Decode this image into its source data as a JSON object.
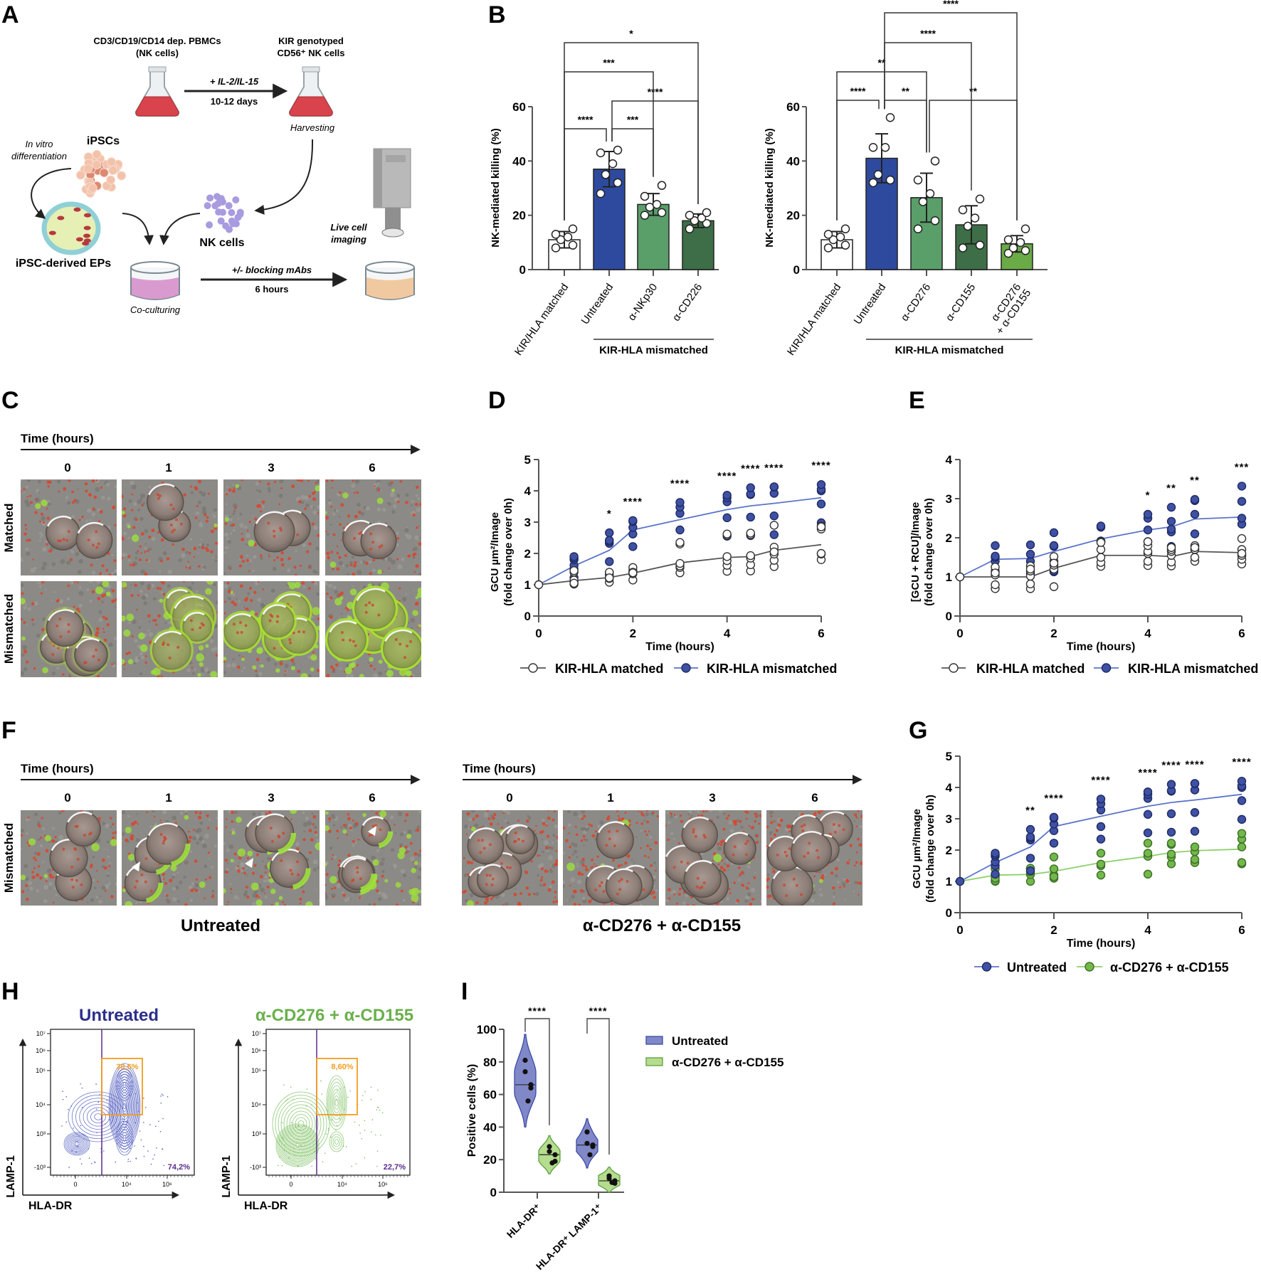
{
  "panel_letters": {
    "A": "A",
    "B": "B",
    "C": "C",
    "D": "D",
    "E": "E",
    "F": "F",
    "G": "G",
    "H": "H",
    "I": "I"
  },
  "panel_a": {
    "source_line1": "CD3/CD19/CD14 dep. PBMCs",
    "source_line2": "(NK cells)",
    "target_line1": "KIR genotyped",
    "target_line2": "CD56⁺ NK cells",
    "expansion_top": "+ IL-2/IL-15",
    "expansion_bottom": "10-12 days",
    "harvesting": "Harvesting",
    "in_vitro_line1": "In vitro",
    "in_vitro_line2": "differentiation",
    "ipscs": "iPSCs",
    "ipsc_eps": "iPSC-derived EPs",
    "nk_cells": "NK cells",
    "live_line1": "Live cell",
    "live_line2": "imaging",
    "coculture_top": "+/- blocking mAbs",
    "coculture_bottom": "6 hours",
    "coculturing": "Co-culturing",
    "colors": {
      "flask_medium": "#d9434b",
      "dish_coculture": "#d99bcf",
      "dish_imaging": "#f1c9a0",
      "nk_cell": "#a99be0"
    }
  },
  "panel_c": {
    "time_label": "Time (hours)",
    "timepoints": [
      "0",
      "1",
      "3",
      "6"
    ],
    "rows": [
      "Matched",
      "Mismatched"
    ]
  },
  "panel_f": {
    "time_label": "Time (hours)",
    "timepoints": [
      "0",
      "1",
      "3",
      "6"
    ],
    "row": "Mismatched",
    "groups": [
      "Untreated",
      "α-CD276 + α-CD155"
    ]
  },
  "panel_h": {
    "plots": [
      {
        "title": "Untreated",
        "color": "#2b2f8a",
        "contour_color": "#5560c0",
        "gate_upper": "30,6%",
        "gate_right": "74,2%"
      },
      {
        "title": "α-CD276 + α-CD155",
        "color": "#6ab04c",
        "contour_color": "#7cc060",
        "gate_upper": "8,60%",
        "gate_right": "22,7%"
      }
    ],
    "ylabel": "LAMP-1",
    "xlabel": "HLA-DR",
    "yticks": [
      "10⁷",
      "10⁶",
      "10⁵",
      "10⁴",
      "10³",
      "-10³"
    ],
    "xticks": [
      "0",
      "10⁴",
      "10⁶"
    ],
    "gate_color": "#f39c1f",
    "divider_color": "#5b2a8c"
  },
  "chart_data": [
    {
      "panel": "B",
      "type": "bar",
      "ylabel": "NK-mediated killing (%)",
      "ylim": [
        0,
        60
      ],
      "yticks": [
        0,
        20,
        40,
        60
      ],
      "categories": [
        "KIR/HLA matched",
        "Untreated",
        "α-NKp30",
        "α-CD226"
      ],
      "values": [
        11,
        37,
        24,
        18
      ],
      "sd": [
        3,
        6.5,
        4,
        2.5
      ],
      "points": [
        [
          8,
          9,
          11,
          12,
          13,
          15
        ],
        [
          28,
          32,
          35,
          39,
          43,
          44
        ],
        [
          20,
          21,
          23,
          24,
          27,
          31
        ],
        [
          15,
          17,
          18,
          19,
          20,
          21
        ]
      ],
      "colors": [
        "#ffffff",
        "#2e4a9e",
        "#5a9e6a",
        "#3d6e47"
      ],
      "group_label": "KIR-HLA mismatched",
      "comparisons": [
        {
          "pair": [
            0,
            1
          ],
          "label": "****"
        },
        {
          "pair": [
            1,
            2
          ],
          "label": "***"
        },
        {
          "pair": [
            1,
            3
          ],
          "label": "****"
        },
        {
          "pair": [
            0,
            2
          ],
          "label": "***"
        },
        {
          "pair": [
            0,
            3
          ],
          "label": "*"
        }
      ]
    },
    {
      "panel": "B",
      "type": "bar",
      "ylabel": "NK-mediated killing (%)",
      "ylim": [
        0,
        60
      ],
      "yticks": [
        0,
        20,
        40,
        60
      ],
      "categories": [
        "KIR/HLA matched",
        "Untreated",
        "α-CD276",
        "α-CD155",
        "α-CD276 + α-CD155"
      ],
      "values": [
        11,
        41,
        26.5,
        16.5,
        9.5
      ],
      "sd": [
        3,
        9,
        9,
        7,
        3
      ],
      "points": [
        [
          8,
          9,
          11,
          12,
          13,
          15
        ],
        [
          32,
          33,
          35,
          45,
          45,
          56
        ],
        [
          15,
          18,
          25,
          28,
          33,
          40
        ],
        [
          8,
          9,
          16,
          19,
          22,
          26
        ],
        [
          6,
          7,
          8,
          10,
          11,
          15
        ]
      ],
      "colors": [
        "#ffffff",
        "#2e4a9e",
        "#5a9e6a",
        "#3d6e47",
        "#6aaa47"
      ],
      "group_label": "KIR-HLA mismatched",
      "comparisons": [
        {
          "pair": [
            0,
            1
          ],
          "label": "****"
        },
        {
          "pair": [
            1,
            2
          ],
          "label": "**"
        },
        {
          "pair": [
            2,
            4
          ],
          "label": "**"
        },
        {
          "pair": [
            0,
            2
          ],
          "label": "**"
        },
        {
          "pair": [
            1,
            3
          ],
          "label": "****"
        },
        {
          "pair": [
            1,
            4
          ],
          "label": "****"
        }
      ]
    },
    {
      "panel": "D",
      "type": "scatter-line",
      "ylabel": [
        "GCU µm²/Image",
        "(fold change over 0h)"
      ],
      "xlabel": "Time (hours)",
      "xlim": [
        0,
        6
      ],
      "xticks": [
        0,
        2,
        4,
        6
      ],
      "ylim": [
        0,
        5
      ],
      "yticks": [
        0,
        1,
        2,
        3,
        4,
        5
      ],
      "x": [
        0,
        0.75,
        1.5,
        2,
        3,
        4,
        4.5,
        5,
        6
      ],
      "series": [
        {
          "name": "KIR-HLA matched",
          "line_color": "#555555",
          "marker_fill": "#ffffff",
          "marker_stroke": "#333333",
          "mean": [
            1,
            1.13,
            1.23,
            1.37,
            1.7,
            1.87,
            1.9,
            2.1,
            2.28
          ],
          "points": [
            [
              1
            ],
            [
              1.02,
              1.1,
              1.4,
              1.45,
              1.15,
              1.05
            ],
            [
              1.08,
              1.2,
              1.3,
              1.38,
              1.4,
              1.22
            ],
            [
              1.15,
              1.35,
              1.45,
              1.55,
              1.4,
              1.38
            ],
            [
              1.38,
              1.55,
              1.6,
              1.68,
              2.3,
              2.35
            ],
            [
              1.43,
              1.62,
              1.77,
              1.9,
              2.58,
              2.62
            ],
            [
              1.44,
              1.64,
              1.85,
              1.93,
              2.6,
              2.65
            ],
            [
              1.58,
              1.78,
              1.98,
              2.2,
              2.9,
              2.05
            ],
            [
              1.8,
              1.98,
              2.0,
              2.78,
              2.88,
              2.85
            ]
          ]
        },
        {
          "name": "KIR-HLA mismatched",
          "line_color": "#5b74c9",
          "marker_fill": "#3f51a3",
          "marker_stroke": "#1f2a66",
          "mean": [
            1,
            1.6,
            2.1,
            2.75,
            3.08,
            3.4,
            3.52,
            3.6,
            3.78
          ],
          "points": [
            [
              1
            ],
            [
              1.23,
              1.5,
              1.62,
              1.8,
              1.85,
              1.9
            ],
            [
              1.74,
              2.32,
              2.38,
              2.42,
              2.66
            ],
            [
              2.22,
              2.62,
              2.83,
              3.02,
              3.05
            ],
            [
              2.75,
              3.28,
              3.48,
              3.63
            ],
            [
              2.55,
              3.14,
              3.65,
              3.78,
              3.86
            ],
            [
              2.57,
              3.16,
              3.88,
              3.9,
              4.1
            ],
            [
              2.6,
              3.2,
              3.92,
              4.12,
              4.13
            ],
            [
              2.98,
              3.58,
              4.0,
              4.05,
              4.2
            ]
          ]
        }
      ],
      "significance": [
        {
          "x": 1.5,
          "label": "*"
        },
        {
          "x": 2,
          "label": "****"
        },
        {
          "x": 3,
          "label": "****"
        },
        {
          "x": 4,
          "label": "****"
        },
        {
          "x": 4.5,
          "label": "****"
        },
        {
          "x": 5,
          "label": "****"
        },
        {
          "x": 6,
          "label": "****"
        }
      ]
    },
    {
      "panel": "E",
      "type": "scatter-line",
      "ylabel": [
        "[GCU + RCU]/Image",
        "(fold change over 0h)"
      ],
      "xlabel": "Time (hours)",
      "xlim": [
        0,
        6
      ],
      "xticks": [
        0,
        2,
        4,
        6
      ],
      "ylim": [
        0,
        4
      ],
      "yticks": [
        0,
        1,
        2,
        3,
        4
      ],
      "x": [
        0,
        0.75,
        1.5,
        2,
        3,
        4,
        4.5,
        5,
        6
      ],
      "series": [
        {
          "name": "KIR-HLA matched",
          "line_color": "#555555",
          "marker_fill": "#ffffff",
          "marker_stroke": "#333333",
          "mean": [
            1,
            1.0,
            1.0,
            1.22,
            1.55,
            1.55,
            1.52,
            1.65,
            1.62
          ],
          "points": [
            [
              1
            ],
            [
              0.7,
              0.8,
              1.05,
              1.15,
              1.25,
              1.1
            ],
            [
              0.7,
              0.82,
              1.02,
              1.15,
              1.28,
              1.2
            ],
            [
              0.75,
              1.2,
              1.3,
              1.4,
              1.52,
              1.35
            ],
            [
              1.27,
              1.37,
              1.5,
              1.7,
              1.9,
              1.88
            ],
            [
              1.29,
              1.4,
              1.6,
              1.65,
              1.8,
              1.9
            ],
            [
              1.28,
              1.38,
              1.55,
              1.65,
              1.7,
              1.75
            ],
            [
              1.4,
              1.5,
              1.7,
              1.78,
              1.8,
              1.75
            ],
            [
              1.33,
              1.45,
              1.55,
              1.7,
              1.98,
              1.6
            ]
          ]
        },
        {
          "name": "KIR-HLA mismatched",
          "line_color": "#5b74c9",
          "marker_fill": "#3f51a3",
          "marker_stroke": "#1f2a66",
          "mean": [
            1,
            1.45,
            1.47,
            1.65,
            1.97,
            2.2,
            2.28,
            2.48,
            2.53
          ],
          "points": [
            [
              1
            ],
            [
              1.4,
              1.5,
              1.53,
              1.8
            ],
            [
              1.08,
              1.4,
              1.58,
              1.82
            ],
            [
              1.13,
              1.15,
              1.78,
              1.8,
              2.13
            ],
            [
              1.9,
              1.92,
              2.27,
              2.3
            ],
            [
              1.9,
              2.2,
              2.5,
              2.6
            ],
            [
              1.78,
              2.15,
              2.22,
              2.42,
              2.78
            ],
            [
              1.7,
              2.1,
              2.6,
              2.95,
              2.98
            ],
            [
              1.55,
              2.35,
              2.5,
              2.93,
              3.32
            ]
          ]
        }
      ],
      "significance": [
        {
          "x": 4,
          "label": "*"
        },
        {
          "x": 4.5,
          "label": "**"
        },
        {
          "x": 5,
          "label": "**"
        },
        {
          "x": 6,
          "label": "***"
        }
      ]
    },
    {
      "panel": "G",
      "type": "scatter-line",
      "ylabel": [
        "GCU µm²/Image",
        "(fold change over 0h)"
      ],
      "xlabel": "Time (hours)",
      "xlim": [
        0,
        6
      ],
      "xticks": [
        0,
        2,
        4,
        6
      ],
      "ylim": [
        0,
        5
      ],
      "yticks": [
        0,
        1,
        2,
        3,
        4,
        5
      ],
      "x": [
        0,
        0.75,
        1.5,
        2,
        3,
        4,
        4.5,
        5,
        6
      ],
      "series": [
        {
          "name": "Untreated",
          "line_color": "#5b74c9",
          "marker_fill": "#3f51a3",
          "marker_stroke": "#1f2a66",
          "mean": [
            1,
            1.6,
            2.1,
            2.75,
            3.08,
            3.4,
            3.52,
            3.6,
            3.78
          ],
          "points": [
            [
              1
            ],
            [
              1.23,
              1.5,
              1.62,
              1.8,
              1.85,
              1.9
            ],
            [
              1.34,
              1.74,
              2.32,
              2.38,
              2.42,
              2.66
            ],
            [
              2.22,
              2.62,
              2.83,
              3.02,
              3.05
            ],
            [
              2.35,
              2.75,
              3.28,
              3.48,
              3.63
            ],
            [
              2.55,
              3.14,
              3.65,
              3.78,
              3.86
            ],
            [
              2.57,
              3.16,
              3.88,
              3.9,
              4.1
            ],
            [
              2.6,
              3.2,
              3.92,
              4.12,
              4.13
            ],
            [
              2.98,
              3.58,
              4.0,
              4.05,
              4.2
            ]
          ]
        },
        {
          "name": "α-CD276 + α-CD155",
          "line_color": "#8fd06a",
          "marker_fill": "#72b84a",
          "marker_stroke": "#3d6e27",
          "mean": [
            1,
            1.2,
            1.22,
            1.32,
            1.6,
            1.8,
            1.92,
            1.98,
            2.03
          ],
          "points": [
            [
              1
            ],
            [
              1.0,
              1.02,
              1.2,
              1.4,
              1.15,
              1.1
            ],
            [
              1.0,
              1.22,
              1.4,
              1.42,
              1.3
            ],
            [
              1.1,
              1.2,
              1.4,
              1.78,
              1.15
            ],
            [
              1.2,
              1.5,
              1.55,
              1.9
            ],
            [
              1.23,
              1.8,
              1.9,
              2.22
            ],
            [
              1.56,
              1.78,
              1.87,
              2.18,
              2.22
            ],
            [
              1.6,
              1.7,
              1.95,
              2.1
            ],
            [
              1.56,
              1.6,
              2.1,
              2.35,
              2.53
            ]
          ]
        }
      ],
      "significance": [
        {
          "x": 1.5,
          "label": "**"
        },
        {
          "x": 2,
          "label": "****"
        },
        {
          "x": 3,
          "label": "****"
        },
        {
          "x": 4,
          "label": "****"
        },
        {
          "x": 4.5,
          "label": "****"
        },
        {
          "x": 5,
          "label": "****"
        },
        {
          "x": 6,
          "label": "****"
        }
      ]
    },
    {
      "panel": "I",
      "type": "violin",
      "ylabel": "Positive cells (%)",
      "ylim": [
        0,
        100
      ],
      "yticks": [
        0,
        20,
        40,
        60,
        80,
        100
      ],
      "categories": [
        "HLA-DR⁺",
        "HLA-DR⁺ LAMP-1⁺"
      ],
      "series": [
        {
          "name": "Untreated",
          "fill": "#8088c8",
          "stroke": "#3d4aa8",
          "points": [
            [
              81,
              74,
              66,
              64,
              56
            ],
            [
              37,
              30,
              29,
              28,
              23
            ]
          ],
          "median": [
            66,
            29
          ]
        },
        {
          "name": "α-CD276 + α-CD155",
          "fill": "#b6dc8e",
          "stroke": "#5aa040",
          "points": [
            [
              28,
              25,
              23,
              19,
              18
            ],
            [
              10,
              8.5,
              7,
              5.5,
              6
            ]
          ],
          "median": [
            23,
            7
          ]
        }
      ],
      "comparisons": [
        {
          "category": 0,
          "label": "****"
        },
        {
          "category": 1,
          "label": "****"
        }
      ],
      "legend": "top-right"
    }
  ]
}
